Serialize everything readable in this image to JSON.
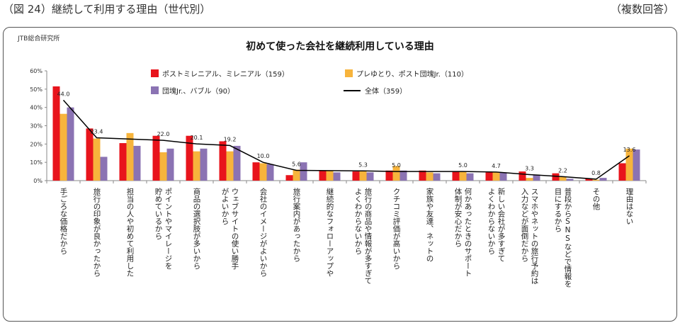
{
  "header": {
    "figure_title": "（図 24）継続して利用する理由（世代別）",
    "note": "（複数回答）"
  },
  "source": "JTB総合研究所",
  "colors": {
    "millennial": "#e8141c",
    "yutori": "#f7b43c",
    "bubble": "#8b73b3",
    "total": "#000000",
    "axis": "#888888"
  },
  "chart_data": {
    "type": "bar",
    "title": "初めて使った会社を継続利用している理由",
    "xlabel": "",
    "ylabel": "",
    "ylim": [
      0,
      60
    ],
    "yticks": [
      "0%",
      "10%",
      "20%",
      "30%",
      "40%",
      "50%",
      "60%"
    ],
    "legend_position": "top",
    "categories": [
      "手ごろな価格だから",
      "旅行の印象が良かったから",
      "担当の人や初めて利用した",
      "ポイントやマイレージを貯めているから",
      "商品の選択肢が多いから",
      "ウェブサイトの使い勝手がよいから",
      "会社のイメージがよいから",
      "旅行案内があったから",
      "継続的なフォローアップや",
      "旅行の商品や情報が多すぎてよくわからないから",
      "クチコミ評価が高いから",
      "家族や友達、ネットの",
      "何かあったときのサポート体制が安心だから",
      "新しい会社が多すぎてよくわからないから",
      "スマホやネットの旅行予約は入力などが面倒だから",
      "普段からSNSなどで情報を目にするから",
      "その他",
      "理由はない"
    ],
    "category_lines": [
      [
        "手ごろな価格だから"
      ],
      [
        "旅行の印象が良かったから"
      ],
      [
        "担当の人や初めて利用した"
      ],
      [
        "ポイントやマイレージを",
        "貯めているから"
      ],
      [
        "商品の選択肢が多いから"
      ],
      [
        "ウェブサイトの使い勝手",
        "がよいから"
      ],
      [
        "会社のイメージがよいから"
      ],
      [
        "旅行案内があったから"
      ],
      [
        "継続的なフォローアップや"
      ],
      [
        "旅行の商品や情報が多すぎて",
        "よくわからないから"
      ],
      [
        "クチコミ評価が高いから"
      ],
      [
        "家族や友達、ネットの"
      ],
      [
        "何かあったときのサポート",
        "体制が安心だから"
      ],
      [
        "新しい会社が多すぎて",
        "よくわからないから"
      ],
      [
        "スマホやネットの旅行予約は",
        "入力などが面倒だから"
      ],
      [
        "普段からSNSなどで情報を",
        "目にするから"
      ],
      [
        "その他"
      ],
      [
        "理由はない"
      ]
    ],
    "series": [
      {
        "name": "ポストミレニアル、ミレニアル（159）",
        "color_key": "millennial",
        "values": [
          51.5,
          28.5,
          20.5,
          24.5,
          24.5,
          21.5,
          10.0,
          3.0,
          5.5,
          5.0,
          5.5,
          5.5,
          5.0,
          4.5,
          5.0,
          4.0,
          1.0,
          9.5
        ]
      },
      {
        "name": "プレゆとり、ポスト団塊Jr.（110）",
        "color_key": "yutori",
        "values": [
          36.5,
          23.0,
          26.0,
          15.5,
          16.0,
          16.0,
          9.5,
          6.0,
          5.5,
          5.5,
          8.0,
          4.5,
          5.0,
          4.5,
          1.5,
          2.0,
          0.5,
          17.5
        ]
      },
      {
        "name": "団塊Jr.、バブル（90）",
        "color_key": "bubble",
        "values": [
          40.0,
          13.0,
          19.0,
          17.5,
          17.5,
          19.0,
          9.0,
          10.0,
          4.5,
          4.5,
          5.5,
          4.0,
          4.0,
          4.5,
          3.0,
          1.0,
          1.5,
          17.0
        ]
      }
    ],
    "line_series": {
      "name": "全体（359）",
      "color_key": "total",
      "values": [
        44.0,
        23.4,
        22.0,
        20.1,
        19.2,
        10.0,
        5.6,
        5.3,
        5.0,
        5.0,
        4.7,
        3.3,
        2.2,
        0.8,
        13.6
      ],
      "labels": [
        "44.0",
        "23.4",
        "22.0",
        "20.1",
        "19.2",
        "10.0",
        "5.6",
        "5.3",
        "5.0",
        "5.0",
        "4.7",
        "3.3",
        "2.2",
        "0.8",
        "13.6"
      ],
      "category_index": [
        0,
        1,
        3,
        4,
        5,
        6,
        7,
        9,
        10,
        12,
        13,
        14,
        15,
        16,
        17
      ]
    }
  }
}
